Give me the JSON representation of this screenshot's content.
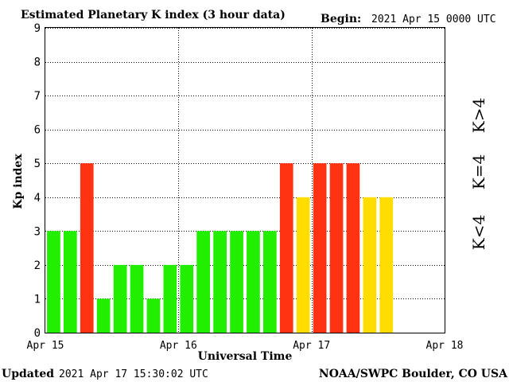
{
  "header": {
    "title": "Estimated Planetary K index (3 hour data)",
    "begin_label": "Begin:",
    "begin_value": "2021 Apr 15 0000 UTC"
  },
  "footer": {
    "updated_label": "Updated",
    "updated_value": "2021 Apr 17 15:30:02 UTC",
    "source": "NOAA/SWPC Boulder, CO USA"
  },
  "legend": {
    "above": "K>4",
    "equal": "K=4",
    "below": "K<4"
  },
  "colors": {
    "below": "#22ee00",
    "equal": "#ffdd00",
    "above": "#ff3311",
    "legend_below": "#55dd33",
    "legend_equal": "#ffcc00",
    "legend_above": "#ee2211"
  },
  "chart_data": {
    "type": "bar",
    "title": "Estimated Planetary K index (3 hour data)",
    "xlabel": "Universal Time",
    "ylabel": "Kp index",
    "ylim": [
      0,
      9
    ],
    "yticks": [
      "0",
      "1",
      "2",
      "3",
      "4",
      "5",
      "6",
      "7",
      "8",
      "9"
    ],
    "xticks": [
      "Apr 15",
      "Apr 16",
      "Apr 17",
      "Apr 18"
    ],
    "interval_hours": 3,
    "bars_per_day": 8,
    "days": 3,
    "grid": true,
    "values": [
      3,
      3,
      5,
      1,
      2,
      2,
      1,
      2,
      2,
      3,
      3,
      3,
      3,
      3,
      5,
      4,
      5,
      5,
      5,
      4,
      4
    ]
  }
}
